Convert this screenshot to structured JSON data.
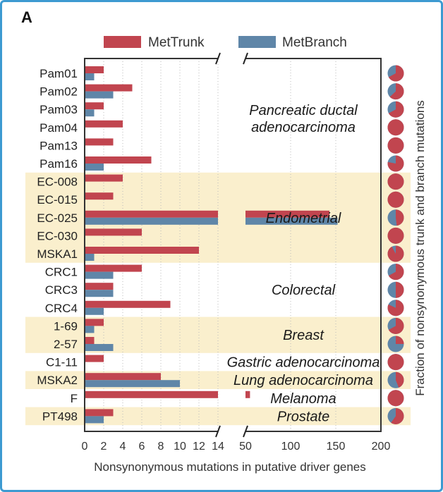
{
  "panel_label": "A",
  "colors": {
    "trunk": "#c1454f",
    "branch": "#5f86a8",
    "highlight": "#faefcd",
    "frame": "#3d9ad1",
    "axis": "#333333"
  },
  "chart_data": {
    "type": "bar",
    "orientation": "horizontal",
    "xlabel": "Nonsynonymous mutations in putative driver genes",
    "right_ylabel": "Fraction of nonsynonymous trunk and branch mutations",
    "x_break": {
      "left_range": [
        0,
        14
      ],
      "right_range": [
        50,
        200
      ]
    },
    "x_ticks_left": [
      "0",
      "2",
      "4",
      "6",
      "8",
      "10",
      "12",
      "14"
    ],
    "x_ticks_right": [
      "50",
      "100",
      "150",
      "200"
    ],
    "legend": {
      "position": "top",
      "entries": [
        "MetTrunk",
        "MetBranch"
      ]
    },
    "categories": [
      "Pam01",
      "Pam02",
      "Pam03",
      "Pam04",
      "Pam13",
      "Pam16",
      "EC-008",
      "EC-015",
      "EC-025",
      "EC-030",
      "MSKA1",
      "CRC1",
      "CRC3",
      "CRC4",
      "1-69",
      "2-57",
      "C1-11",
      "MSKA2",
      "F",
      "PT498"
    ],
    "series": [
      {
        "name": "MetTrunk",
        "values": [
          2,
          5,
          2,
          4,
          3,
          7,
          4,
          3,
          143,
          6,
          12,
          6,
          3,
          9,
          2,
          1,
          2,
          8,
          55,
          3
        ]
      },
      {
        "name": "MetBranch",
        "values": [
          1,
          3,
          1,
          0,
          0,
          2,
          0,
          0,
          152,
          0,
          1,
          3,
          3,
          2,
          1,
          3,
          0,
          10,
          0,
          2
        ]
      }
    ],
    "groups": [
      {
        "label": "Pancreatic ductal adenocarcinoma",
        "lines": [
          "Pancreatic ductal",
          "adenocarcinoma"
        ],
        "start": 0,
        "end": 5,
        "highlight": false
      },
      {
        "label": "Endometrial",
        "lines": [
          "Endometrial"
        ],
        "start": 6,
        "end": 10,
        "highlight": true
      },
      {
        "label": "Colorectal",
        "lines": [
          "Colorectal"
        ],
        "start": 11,
        "end": 13,
        "highlight": false
      },
      {
        "label": "Breast",
        "lines": [
          "Breast"
        ],
        "start": 14,
        "end": 15,
        "highlight": true
      },
      {
        "label": "Gastric adenocarcinoma",
        "lines": [
          "Gastric adenocarcinoma"
        ],
        "start": 16,
        "end": 16,
        "highlight": false
      },
      {
        "label": "Lung adenocarcinoma",
        "lines": [
          "Lung adenocarcinoma"
        ],
        "start": 17,
        "end": 17,
        "highlight": true
      },
      {
        "label": "Melanoma",
        "lines": [
          "Melanoma"
        ],
        "start": 18,
        "end": 18,
        "highlight": false
      },
      {
        "label": "Prostate",
        "lines": [
          "Prostate"
        ],
        "start": 19,
        "end": 19,
        "highlight": true
      }
    ],
    "pie_fraction_trunk": [
      0.67,
      0.63,
      0.67,
      1.0,
      1.0,
      0.78,
      1.0,
      1.0,
      0.48,
      1.0,
      0.92,
      0.67,
      0.5,
      0.82,
      0.67,
      0.25,
      1.0,
      0.44,
      1.0,
      0.6
    ]
  }
}
